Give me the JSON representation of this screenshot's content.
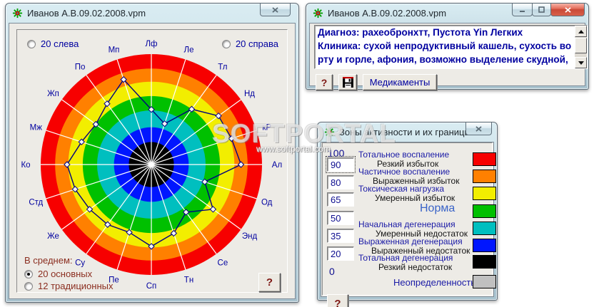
{
  "watermark": {
    "text": "SOFTPORTAL",
    "url": "www.softportal.com"
  },
  "patient_window": {
    "title": "Иванов А.В.09.02.2008.vpm",
    "radio_left": "20 слева",
    "radio_right": "20 справа",
    "average_label": "В среднем:",
    "average_options": [
      {
        "label": "20 основных",
        "selected": true
      },
      {
        "label": "12 традиционных",
        "selected": false
      }
    ],
    "help_label": "?",
    "chart_data": {
      "type": "radar",
      "categories": [
        "Лф",
        "Ле",
        "Тл",
        "Нд",
        "кР",
        "Ал",
        "Од",
        "Энд",
        "Се",
        "Тн",
        "Сп",
        "Пе",
        "Су",
        "Же",
        "Стд",
        "Ко",
        "Мж",
        "Жп",
        "По",
        "Мп"
      ],
      "values": [
        51,
        40,
        65,
        80,
        81,
        85,
        52,
        73,
        55,
        69,
        79,
        68,
        71,
        73,
        77,
        81,
        70,
        65,
        72,
        85
      ],
      "scale_values": [
        0,
        20,
        35,
        50,
        65,
        80,
        90,
        100
      ],
      "scale_fractions": [
        0,
        0.204,
        0.338,
        0.49,
        0.62,
        0.75,
        0.87,
        1.0
      ],
      "rings_outer_to_inner": [
        {
          "value": 100,
          "fraction": 1.0,
          "color": "#f70000"
        },
        {
          "value": 90,
          "fraction": 0.87,
          "color": "#ff8000"
        },
        {
          "value": 80,
          "fraction": 0.75,
          "color": "#f2ee00"
        },
        {
          "value": 65,
          "fraction": 0.62,
          "color": "#00c000"
        },
        {
          "value": 50,
          "fraction": 0.49,
          "color": "#00bfbf"
        },
        {
          "value": 35,
          "fraction": 0.338,
          "color": "#0016ff"
        },
        {
          "value": 20,
          "fraction": 0.204,
          "color": "#000000"
        }
      ],
      "spoke_color": "#ffffff",
      "series_color": "#000080",
      "marker_fill": "#f4f4f4",
      "label_color": "#0000a0"
    }
  },
  "diagnosis_window": {
    "title": "Иванов А.В.09.02.2008.vpm",
    "lines": [
      "Диагноз: рахеобронхтт,  Пустота Yin Легких",
      "Клиника: сухой непродуктивный кашель, сухость во",
      "рту и горле, афония, возможно выделение скудной,"
    ],
    "help_label": "?",
    "medicaments_label": "Медикаменты"
  },
  "zones_window": {
    "title": "Зоны активности и их границы",
    "max_value": "100",
    "min_value": "0",
    "boundary_inputs": [
      "90",
      "80",
      "65",
      "50",
      "35",
      "20"
    ],
    "help_label": "?",
    "rows": [
      {
        "category": "Тотальное воспаление",
        "description": "Резкий избыток",
        "color": "#f70000"
      },
      {
        "category": "Частичное воспаление",
        "description": "Выраженный избыток",
        "color": "#ff8000"
      },
      {
        "category": "Токсическая нагрузка",
        "description": "Умеренный избыток",
        "color": "#f2ee00"
      },
      {
        "category": "Норма",
        "description": "",
        "color": "#00c000"
      },
      {
        "category": "Начальная дегенерация",
        "description": "Умеренный недостаток",
        "color": "#00bfbf"
      },
      {
        "category": "Выраженная дегенерация",
        "description": "Выраженный недостаток",
        "color": "#0016ff"
      },
      {
        "category": "Тотальная дегенерация",
        "description": "Резкий недостаток",
        "color": "#000000"
      },
      {
        "category": "Неопределенность",
        "description": "",
        "color": "#c0c0c0"
      }
    ]
  }
}
